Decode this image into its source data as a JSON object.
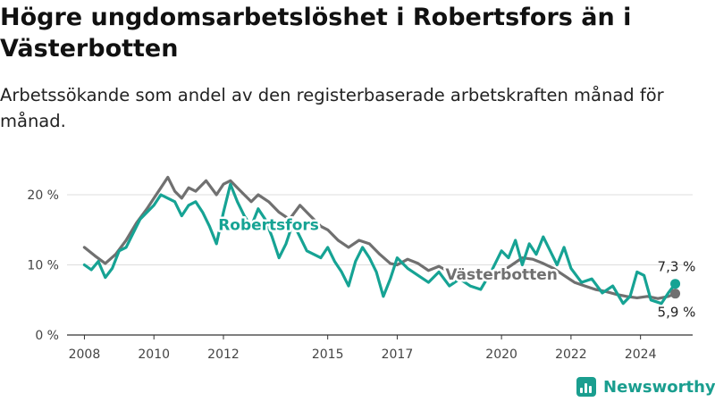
{
  "header": {
    "title": "Högre ungdomsarbetslöshet i Robertsfors än i Västerbotten",
    "subtitle": "Arbetssökande som andel av den registerbaserade arbetskraften månad för månad."
  },
  "brand": {
    "name": "Newsworthy",
    "color": "#1a9e8f"
  },
  "chart_data": {
    "type": "line",
    "title": "Högre ungdomsarbetslöshet i Robertsfors än i Västerbotten",
    "subtitle": "Arbetssökande som andel av den registerbaserade arbetskraften månad för månad.",
    "xlabel": "",
    "ylabel": "",
    "xlim": [
      2007.5,
      2025.5
    ],
    "ylim": [
      0,
      20
    ],
    "x_ticks": [
      2008,
      2010,
      2012,
      2015,
      2017,
      2020,
      2022,
      2024
    ],
    "y_ticks": [
      0,
      10,
      20
    ],
    "y_tick_labels": [
      "0 %",
      "10 %",
      "20 %"
    ],
    "grid": true,
    "series": [
      {
        "name": "Västerbotten",
        "color": "#707070",
        "end_label": "5,9 %",
        "points": [
          [
            2008.0,
            12.5
          ],
          [
            2008.3,
            11.3
          ],
          [
            2008.6,
            10.2
          ],
          [
            2008.9,
            11.5
          ],
          [
            2009.2,
            13.5
          ],
          [
            2009.5,
            16.0
          ],
          [
            2009.8,
            18.0
          ],
          [
            2010.0,
            19.5
          ],
          [
            2010.2,
            21.0
          ],
          [
            2010.4,
            22.5
          ],
          [
            2010.6,
            20.5
          ],
          [
            2010.8,
            19.5
          ],
          [
            2011.0,
            21.0
          ],
          [
            2011.2,
            20.5
          ],
          [
            2011.5,
            22.0
          ],
          [
            2011.8,
            20.0
          ],
          [
            2012.0,
            21.5
          ],
          [
            2012.2,
            22.0
          ],
          [
            2012.4,
            21.0
          ],
          [
            2012.6,
            20.0
          ],
          [
            2012.8,
            19.0
          ],
          [
            2013.0,
            20.0
          ],
          [
            2013.3,
            19.0
          ],
          [
            2013.6,
            17.5
          ],
          [
            2013.9,
            16.5
          ],
          [
            2014.2,
            18.5
          ],
          [
            2014.5,
            17.0
          ],
          [
            2014.8,
            15.5
          ],
          [
            2015.0,
            15.0
          ],
          [
            2015.3,
            13.5
          ],
          [
            2015.6,
            12.5
          ],
          [
            2015.9,
            13.5
          ],
          [
            2016.2,
            13.0
          ],
          [
            2016.5,
            11.5
          ],
          [
            2016.8,
            10.2
          ],
          [
            2017.0,
            10.0
          ],
          [
            2017.3,
            10.8
          ],
          [
            2017.6,
            10.2
          ],
          [
            2017.9,
            9.2
          ],
          [
            2018.2,
            9.8
          ],
          [
            2018.5,
            9.0
          ],
          [
            2018.8,
            8.8
          ],
          [
            2019.1,
            8.5
          ],
          [
            2019.4,
            8.8
          ],
          [
            2019.7,
            8.5
          ],
          [
            2020.0,
            9.0
          ],
          [
            2020.3,
            10.0
          ],
          [
            2020.6,
            11.0
          ],
          [
            2020.9,
            10.8
          ],
          [
            2021.2,
            10.2
          ],
          [
            2021.5,
            9.5
          ],
          [
            2021.8,
            8.5
          ],
          [
            2022.1,
            7.5
          ],
          [
            2022.4,
            7.0
          ],
          [
            2022.7,
            6.5
          ],
          [
            2023.0,
            6.2
          ],
          [
            2023.3,
            5.8
          ],
          [
            2023.6,
            5.5
          ],
          [
            2023.9,
            5.3
          ],
          [
            2024.2,
            5.5
          ],
          [
            2024.5,
            5.2
          ],
          [
            2024.8,
            5.5
          ],
          [
            2025.0,
            5.9
          ]
        ]
      },
      {
        "name": "Robertsfors",
        "color": "#16a394",
        "end_label": "7,3 %",
        "points": [
          [
            2008.0,
            10.0
          ],
          [
            2008.2,
            9.3
          ],
          [
            2008.4,
            10.5
          ],
          [
            2008.6,
            8.2
          ],
          [
            2008.8,
            9.5
          ],
          [
            2009.0,
            12.0
          ],
          [
            2009.2,
            12.5
          ],
          [
            2009.4,
            14.5
          ],
          [
            2009.6,
            16.5
          ],
          [
            2009.8,
            17.5
          ],
          [
            2010.0,
            18.5
          ],
          [
            2010.2,
            20.0
          ],
          [
            2010.4,
            19.5
          ],
          [
            2010.6,
            19.0
          ],
          [
            2010.8,
            17.0
          ],
          [
            2011.0,
            18.5
          ],
          [
            2011.2,
            19.0
          ],
          [
            2011.4,
            17.5
          ],
          [
            2011.6,
            15.5
          ],
          [
            2011.8,
            13.0
          ],
          [
            2012.0,
            17.5
          ],
          [
            2012.2,
            21.5
          ],
          [
            2012.4,
            19.0
          ],
          [
            2012.6,
            17.0
          ],
          [
            2012.8,
            15.5
          ],
          [
            2013.0,
            18.0
          ],
          [
            2013.2,
            16.5
          ],
          [
            2013.4,
            14.0
          ],
          [
            2013.6,
            11.0
          ],
          [
            2013.8,
            13.0
          ],
          [
            2014.0,
            16.0
          ],
          [
            2014.2,
            14.0
          ],
          [
            2014.4,
            12.0
          ],
          [
            2014.6,
            11.5
          ],
          [
            2014.8,
            11.0
          ],
          [
            2015.0,
            12.5
          ],
          [
            2015.2,
            10.5
          ],
          [
            2015.4,
            9.0
          ],
          [
            2015.6,
            7.0
          ],
          [
            2015.8,
            10.5
          ],
          [
            2016.0,
            12.5
          ],
          [
            2016.2,
            11.0
          ],
          [
            2016.4,
            9.0
          ],
          [
            2016.6,
            5.5
          ],
          [
            2016.8,
            8.0
          ],
          [
            2017.0,
            11.0
          ],
          [
            2017.3,
            9.5
          ],
          [
            2017.6,
            8.5
          ],
          [
            2017.9,
            7.5
          ],
          [
            2018.2,
            9.0
          ],
          [
            2018.5,
            7.0
          ],
          [
            2018.8,
            8.0
          ],
          [
            2019.1,
            7.0
          ],
          [
            2019.4,
            6.5
          ],
          [
            2019.7,
            9.0
          ],
          [
            2020.0,
            12.0
          ],
          [
            2020.2,
            11.0
          ],
          [
            2020.4,
            13.5
          ],
          [
            2020.6,
            10.0
          ],
          [
            2020.8,
            13.0
          ],
          [
            2021.0,
            11.5
          ],
          [
            2021.2,
            14.0
          ],
          [
            2021.4,
            12.0
          ],
          [
            2021.6,
            10.0
          ],
          [
            2021.8,
            12.5
          ],
          [
            2022.0,
            9.5
          ],
          [
            2022.3,
            7.5
          ],
          [
            2022.6,
            8.0
          ],
          [
            2022.9,
            6.0
          ],
          [
            2023.2,
            7.0
          ],
          [
            2023.5,
            4.5
          ],
          [
            2023.7,
            5.5
          ],
          [
            2023.9,
            9.0
          ],
          [
            2024.1,
            8.5
          ],
          [
            2024.3,
            5.0
          ],
          [
            2024.6,
            4.5
          ],
          [
            2024.8,
            6.0
          ],
          [
            2025.0,
            7.3
          ]
        ]
      }
    ],
    "annotations": [
      {
        "text": "Robertsfors",
        "series": "Robertsfors",
        "x": 2013.3,
        "y": 15.0
      },
      {
        "text": "Västerbotten",
        "series": "Västerbotten",
        "x": 2020.0,
        "y": 7.9
      }
    ]
  }
}
